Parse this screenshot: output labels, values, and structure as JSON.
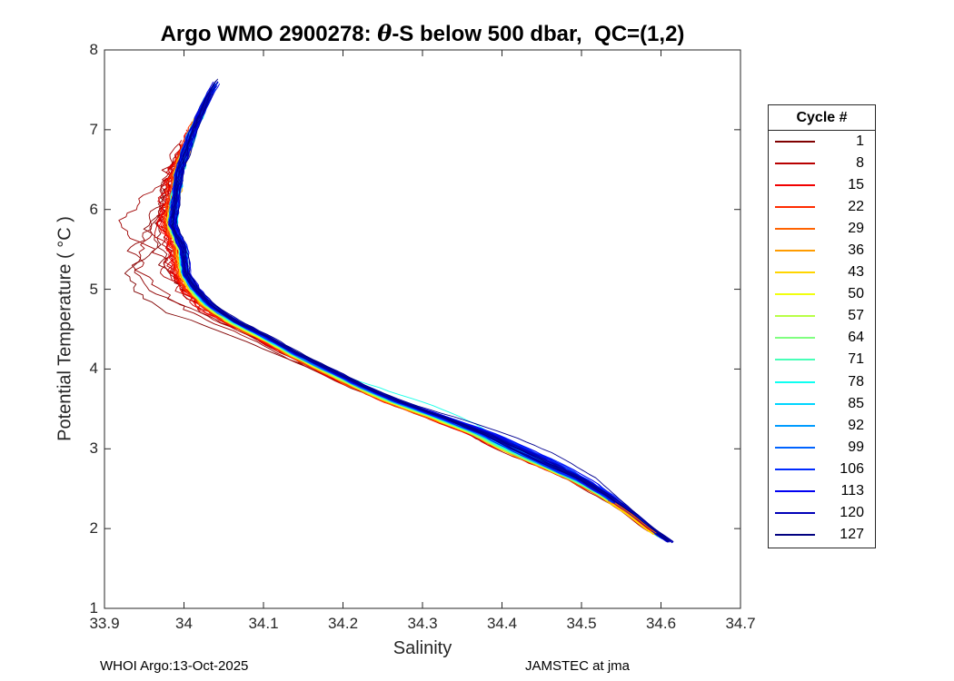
{
  "title": {
    "prefix": "Argo WMO 2900278: ",
    "theta": "θ",
    "suffix": "-S below 500 dbar,  QC=(1,2)"
  },
  "footer": {
    "left": "WHOI Argo:13-Oct-2025",
    "right": "JAMSTEC at jma"
  },
  "chart_data": {
    "type": "line",
    "title": "Argo WMO 2900278: θ-S below 500 dbar, QC=(1,2)",
    "xlabel": "Salinity",
    "ylabel": "Potential Temperature ( °C )",
    "xlim": [
      33.9,
      34.7
    ],
    "ylim": [
      1,
      8
    ],
    "xtick_labels": [
      "33.9",
      "34",
      "34.1",
      "34.2",
      "34.3",
      "34.4",
      "34.5",
      "34.6",
      "34.7"
    ],
    "ytick_labels": [
      "1",
      "2",
      "3",
      "4",
      "5",
      "6",
      "7",
      "8"
    ],
    "grid": false,
    "n_curves": 127,
    "colormap": "reversed-jet (cycle 1 = dark red, cycle 127 = navy)",
    "legend": {
      "title": "Cycle #",
      "entries": [
        {
          "cycle": "1",
          "color": "#800000"
        },
        {
          "cycle": "8",
          "color": "#B80000"
        },
        {
          "cycle": "15",
          "color": "#F10000"
        },
        {
          "cycle": "22",
          "color": "#FF2B00"
        },
        {
          "cycle": "29",
          "color": "#FF6300"
        },
        {
          "cycle": "36",
          "color": "#FF9C00"
        },
        {
          "cycle": "43",
          "color": "#FFD500"
        },
        {
          "cycle": "50",
          "color": "#F1FF0E"
        },
        {
          "cycle": "57",
          "color": "#B8FF47"
        },
        {
          "cycle": "64",
          "color": "#80FF80"
        },
        {
          "cycle": "71",
          "color": "#47FFB8"
        },
        {
          "cycle": "78",
          "color": "#0EFFF1"
        },
        {
          "cycle": "85",
          "color": "#00D5FF"
        },
        {
          "cycle": "92",
          "color": "#009CFF"
        },
        {
          "cycle": "99",
          "color": "#0063FF"
        },
        {
          "cycle": "106",
          "color": "#002BFF"
        },
        {
          "cycle": "113",
          "color": "#0000F1"
        },
        {
          "cycle": "120",
          "color": "#0000B8"
        },
        {
          "cycle": "127",
          "color": "#000080"
        }
      ]
    },
    "base_curve": {
      "theta": [
        7.65,
        7.4,
        7.0,
        6.5,
        6.2,
        5.8,
        5.5,
        5.2,
        5.0,
        4.8,
        4.6,
        4.4,
        4.2,
        4.0,
        3.8,
        3.6,
        3.4,
        3.2,
        3.0,
        2.8,
        2.6,
        2.4,
        2.2,
        2.0,
        1.9,
        1.8
      ],
      "salinity": [
        34.045,
        34.03,
        34.012,
        33.995,
        33.99,
        33.985,
        33.998,
        34.0,
        34.012,
        34.03,
        34.06,
        34.1,
        34.135,
        34.175,
        34.215,
        34.26,
        34.315,
        34.365,
        34.405,
        34.45,
        34.495,
        34.53,
        34.56,
        34.585,
        34.6,
        34.615
      ]
    }
  }
}
